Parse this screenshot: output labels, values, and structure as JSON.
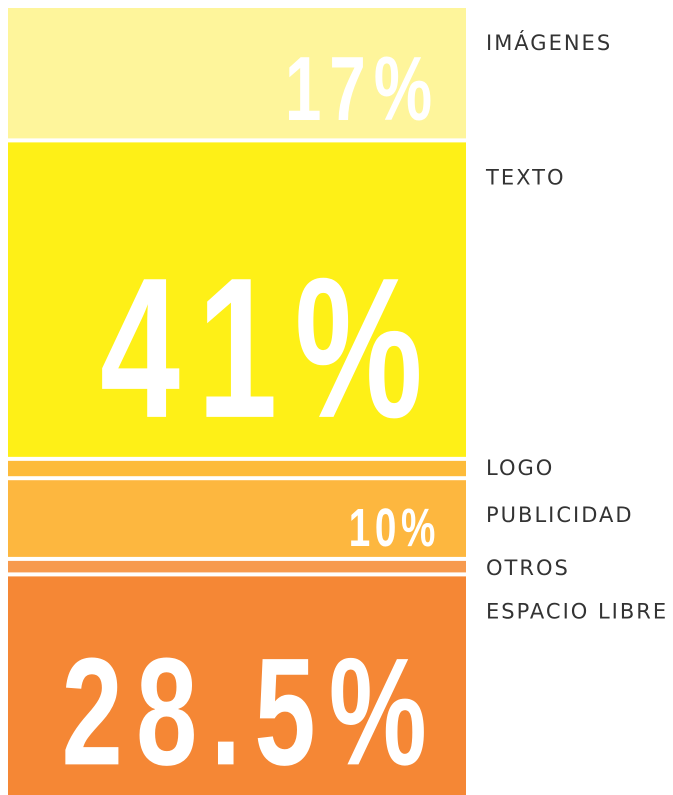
{
  "chart_data": {
    "type": "bar",
    "stacked": true,
    "series": [
      {
        "name": "IMÁGENES",
        "color": "#fef59b",
        "values": [
          17
        ],
        "value_labels": [
          "17%"
        ]
      },
      {
        "name": "TEXTO",
        "color": "#fef017",
        "values": [
          41
        ],
        "value_labels": [
          "41%"
        ]
      },
      {
        "name": "LOGO",
        "color": "#fdbb3a",
        "values": [
          2
        ],
        "value_labels": [
          null
        ]
      },
      {
        "name": "PUBLICIDAD",
        "color": "#fdb73f",
        "values": [
          10
        ],
        "value_labels": [
          "10%"
        ]
      },
      {
        "name": "OTROS",
        "color": "#f79a4e",
        "values": [
          1.5
        ],
        "value_labels": [
          null
        ]
      },
      {
        "name": "ESPACIO LIBRE",
        "color": "#f58735",
        "values": [
          28.5
        ],
        "value_labels": [
          "28.5%"
        ]
      }
    ]
  }
}
